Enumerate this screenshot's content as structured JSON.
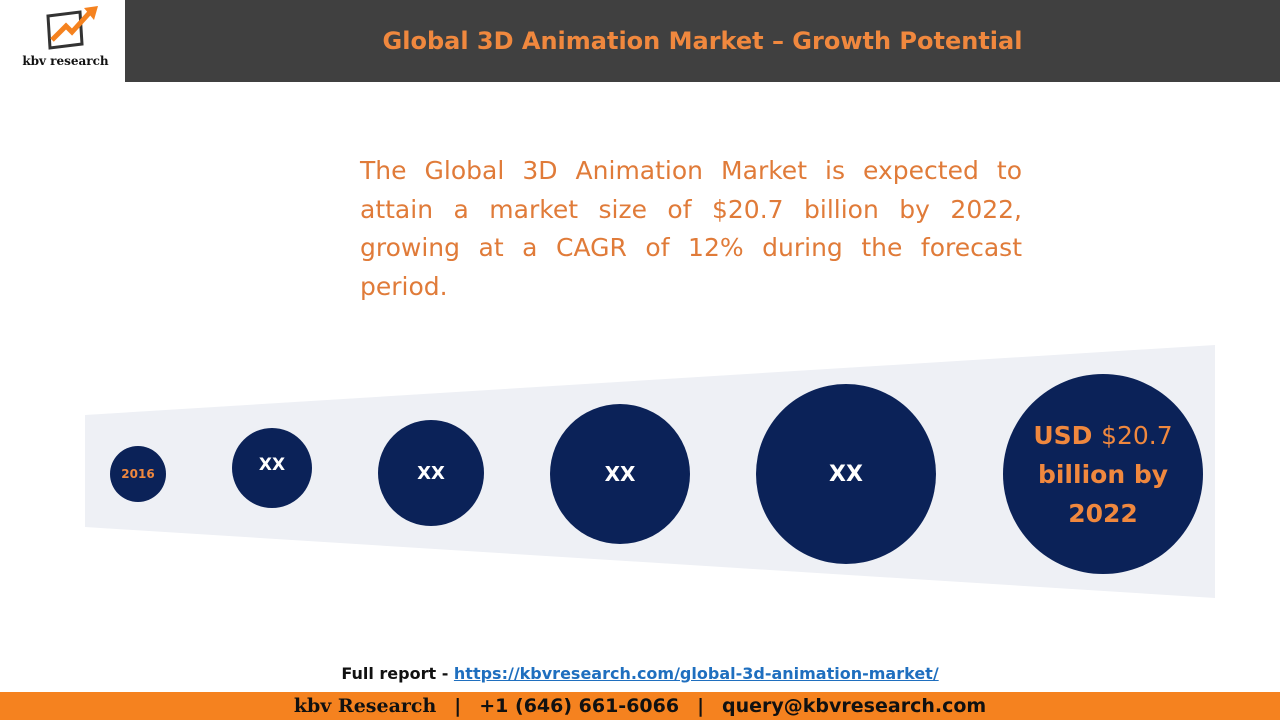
{
  "logo": "kbv research",
  "header": {
    "title": "Global 3D Animation Market – Growth Potential"
  },
  "summary": "The Global 3D Animation Market is expected to attain a market size of $20.7 billion by 2022, growing at a CAGR of 12% during the forecast period.",
  "circles": [
    "2016",
    "XX",
    "XX",
    "XX",
    "XX"
  ],
  "final_circle": {
    "unit": "USD",
    "value": "$20.7",
    "text": "billion by 2022"
  },
  "footer": {
    "label": "Full report -",
    "link": "https://kbvresearch.com/global-3d-animation-market/"
  },
  "contact_bar": {
    "brand": "kbv Research",
    "separator": "|",
    "phone": "+1 (646) 661-6066",
    "email": "query@kbvresearch.com"
  }
}
